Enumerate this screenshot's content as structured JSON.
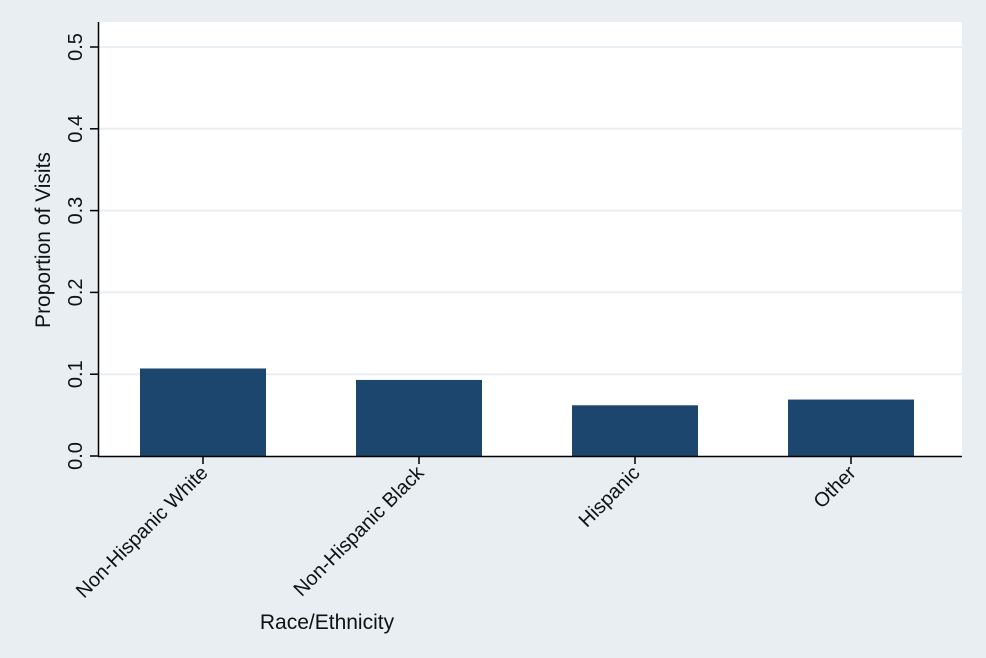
{
  "chart_data": {
    "type": "bar",
    "title": "",
    "xlabel": "Race/Ethnicity",
    "ylabel": "Proportion of Visits",
    "categories": [
      "Non-Hispanic White",
      "Non-Hispanic Black",
      "Hispanic",
      "Other"
    ],
    "values": [
      0.107,
      0.093,
      0.062,
      0.069
    ],
    "ylim": [
      0,
      0.5
    ],
    "yticks": [
      "0.0",
      "0.1",
      "0.2",
      "0.3",
      "0.4",
      "0.5"
    ],
    "grid": true,
    "legend": "none",
    "colors": {
      "bar": "#1c466e",
      "plot_background": "#ffffff",
      "outer_background": "#e8eef1",
      "gridline": "#e8eef1",
      "axis": "#000000"
    }
  }
}
